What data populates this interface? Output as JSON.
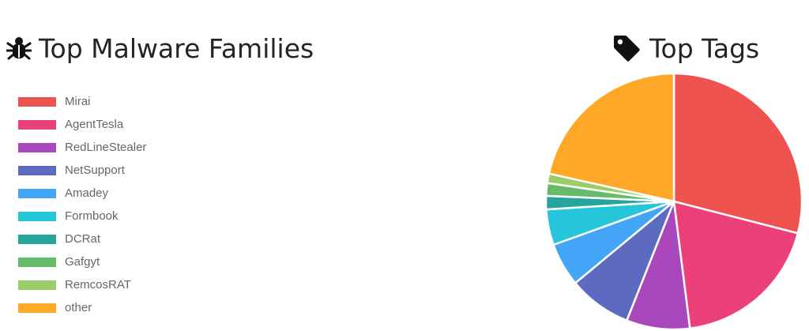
{
  "left_panel": {
    "title": "Top Malware Families",
    "icon": "bug-icon"
  },
  "right_panel": {
    "title": "Top Tags",
    "icon": "tag-icon"
  },
  "chart_data": {
    "type": "pie",
    "title": "Top Malware Families",
    "legend_position": "left",
    "series": [
      {
        "name": "Mirai",
        "value": 29,
        "color": "#ef5350"
      },
      {
        "name": "AgentTesla",
        "value": 19,
        "color": "#ec407a"
      },
      {
        "name": "RedLineStealer",
        "value": 8,
        "color": "#ab47bc"
      },
      {
        "name": "NetSupport",
        "value": 8,
        "color": "#5c6bc0"
      },
      {
        "name": "Amadey",
        "value": 5.5,
        "color": "#42a5f5"
      },
      {
        "name": "Formbook",
        "value": 4.5,
        "color": "#26c6da"
      },
      {
        "name": "DCRat",
        "value": 1.7,
        "color": "#26a69a"
      },
      {
        "name": "Gafgyt",
        "value": 1.6,
        "color": "#66bb6a"
      },
      {
        "name": "RemcosRAT",
        "value": 1.2,
        "color": "#9ccc65"
      },
      {
        "name": "other",
        "value": 21.5,
        "color": "#ffa726"
      }
    ]
  }
}
